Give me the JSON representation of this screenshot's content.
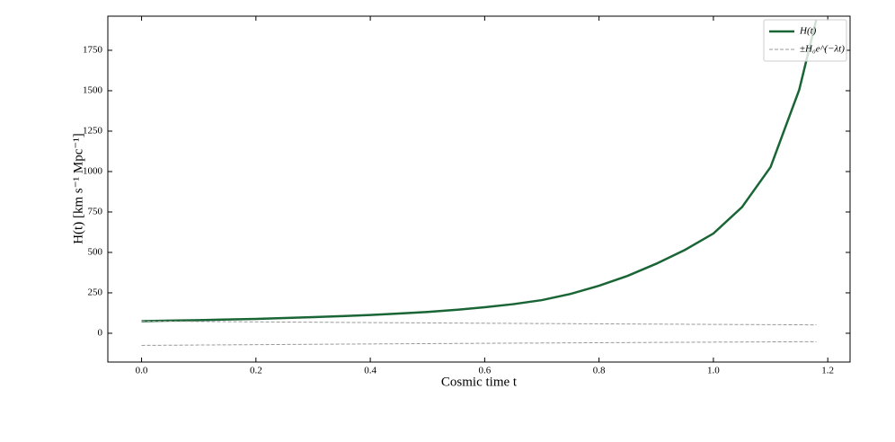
{
  "chart_data": {
    "type": "line",
    "xlabel": "Cosmic time t",
    "ylabel": "H(t) [km s⁻¹ Mpc⁻¹]",
    "xlim": [
      -0.059,
      1.239
    ],
    "ylim": [
      -178,
      1961
    ],
    "xticks": [
      {
        "value": 0,
        "label": "0.0"
      },
      0.2,
      0.4,
      0.6,
      0.8,
      {
        "value": 1,
        "label": "1.0"
      },
      1.2
    ],
    "yticks": [
      0,
      250,
      500,
      750,
      1000,
      1250,
      1500,
      1750
    ],
    "legend": "upper right",
    "series": [
      {
        "name": "H(t)",
        "color": "#1a6535",
        "dashed": false,
        "x": [
          0,
          0.05,
          0.1,
          0.15,
          0.2,
          0.25,
          0.3,
          0.35,
          0.4,
          0.45,
          0.5,
          0.55,
          0.6,
          0.65,
          0.7,
          0.75,
          0.8,
          0.85,
          0.9,
          0.95,
          1.0,
          1.05,
          1.1,
          1.15,
          1.18
        ],
        "values": [
          75,
          78,
          81,
          85,
          89,
          94,
          100,
          106,
          113,
          122,
          132,
          145,
          161,
          180,
          205,
          243,
          294,
          355,
          430,
          515,
          617,
          780,
          1028,
          1505,
          1940
        ]
      },
      {
        "name": "±H₀e^(−λt)",
        "color": "#999999",
        "dashed": true,
        "x": [
          0,
          0.2,
          0.4,
          0.6,
          0.8,
          1.0,
          1.18
        ],
        "values": [
          75,
          70.5,
          66,
          62,
          58.4,
          54.8,
          52
        ]
      },
      {
        "color": "#999999",
        "dashed": true,
        "x": [
          0,
          0.2,
          0.4,
          0.6,
          0.8,
          1.0,
          1.18
        ],
        "values": [
          -75,
          -70.5,
          -66,
          -62,
          -58.4,
          -54.8,
          -52
        ]
      }
    ]
  }
}
